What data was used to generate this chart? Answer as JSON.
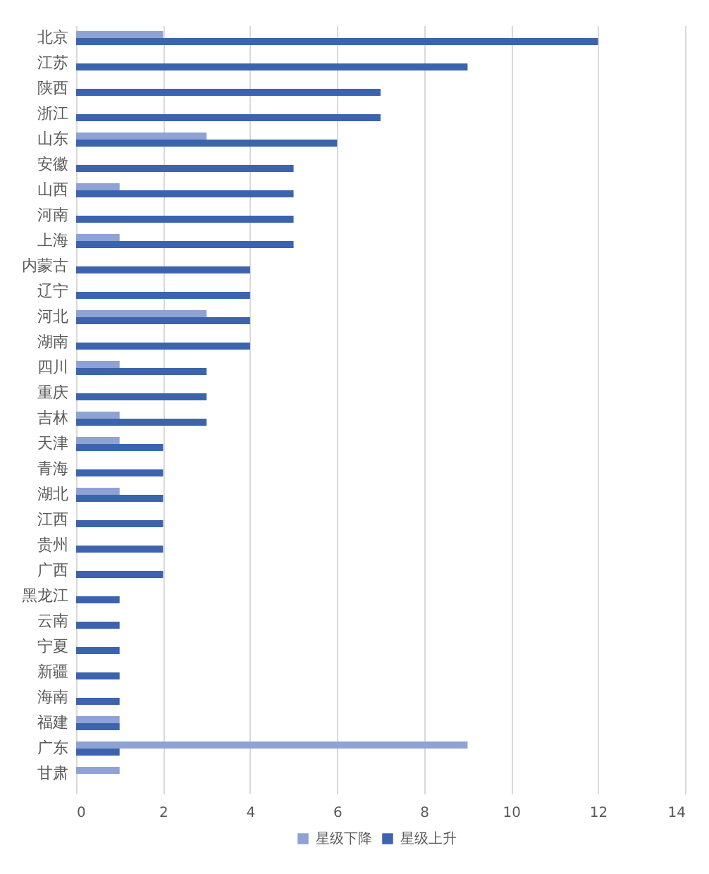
{
  "chart_data": {
    "type": "bar",
    "orientation": "horizontal",
    "categories": [
      "北京",
      "江苏",
      "陕西",
      "浙江",
      "山东",
      "安徽",
      "山西",
      "河南",
      "上海",
      "内蒙古",
      "辽宁",
      "河北",
      "湖南",
      "四川",
      "重庆",
      "吉林",
      "天津",
      "青海",
      "湖北",
      "江西",
      "贵州",
      "广西",
      "黑龙江",
      "云南",
      "宁夏",
      "新疆",
      "海南",
      "福建",
      "广东",
      "甘肃"
    ],
    "series": [
      {
        "name": "星级下降",
        "color": "#8fa2d4",
        "values": [
          2,
          null,
          null,
          null,
          3,
          null,
          1,
          null,
          1,
          null,
          null,
          3,
          null,
          1,
          null,
          1,
          1,
          null,
          1,
          null,
          null,
          null,
          null,
          null,
          null,
          null,
          null,
          1,
          9,
          1
        ]
      },
      {
        "name": "星级上升",
        "color": "#3c64ae",
        "values": [
          12,
          9,
          7,
          7,
          6,
          5,
          5,
          5,
          5,
          4,
          4,
          4,
          4,
          3,
          3,
          3,
          2,
          2,
          2,
          2,
          2,
          2,
          1,
          1,
          1,
          1,
          1,
          1,
          1,
          null
        ]
      }
    ],
    "xlim": [
      0,
      14
    ],
    "xticks": [
      0,
      2,
      4,
      6,
      8,
      10,
      12,
      14
    ],
    "grid": "x",
    "legend": "bottom"
  }
}
